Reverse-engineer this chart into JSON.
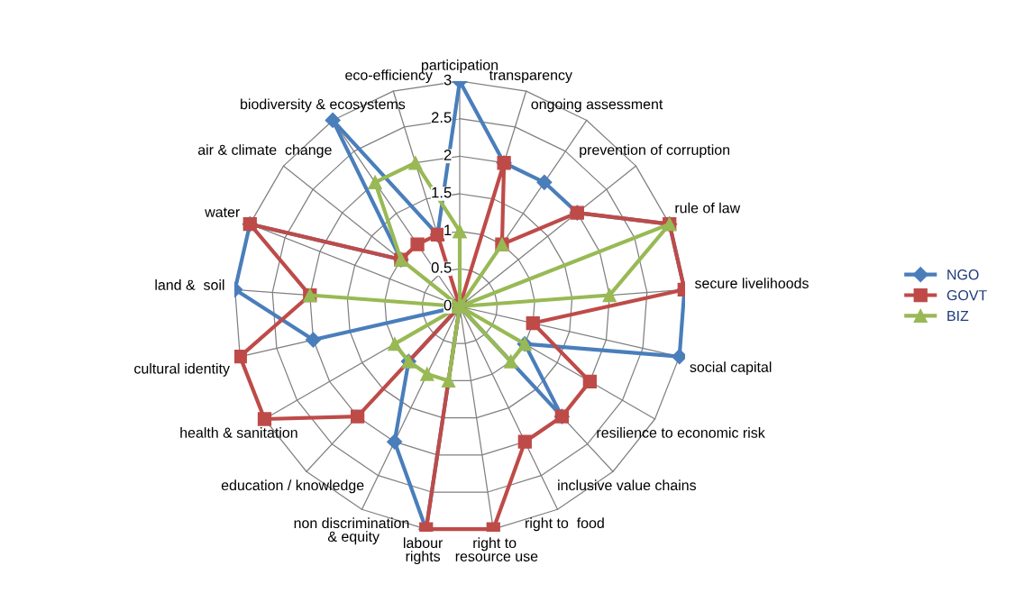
{
  "chart_data": {
    "type": "radar",
    "categories": [
      "participation",
      "transparency",
      "ongoing assessment",
      "prevention of corruption",
      "rule of law",
      "secure livelihoods",
      "social capital",
      "resilience to economic risk",
      "inclusive value chains",
      "right to  food",
      "right to  resource use",
      "labour rights",
      "non discrimination  & equity",
      "education / knowledge",
      "health & sanitation",
      "cultural identity",
      "land &  soil",
      "water",
      "air & climate  change",
      "biodiversity & ecosystems",
      "eco-efficiency"
    ],
    "series": [
      {
        "name": "NGO",
        "color": "#4a7ebb",
        "marker": "diamond",
        "values": [
          3,
          2,
          2,
          2,
          3,
          3,
          3,
          1,
          2,
          0,
          0,
          3,
          2,
          1,
          0,
          2,
          3,
          3,
          1,
          3,
          1
        ]
      },
      {
        "name": "GOVT",
        "color": "#be4b48",
        "marker": "square",
        "values": [
          0,
          2,
          1,
          2,
          3,
          3,
          1,
          2,
          2,
          2,
          3,
          3,
          0,
          2,
          3,
          3,
          2,
          3,
          1,
          1,
          1
        ]
      },
      {
        "name": "BIZ",
        "color": "#98b954",
        "marker": "triangle",
        "values": [
          1,
          0,
          1,
          0,
          3,
          2,
          0,
          1,
          1,
          0,
          0,
          1,
          1,
          1,
          1,
          0,
          2,
          0,
          1,
          2,
          2
        ]
      }
    ],
    "ylim": [
      0,
      3
    ],
    "yticks": [
      0,
      0.5,
      1,
      1.5,
      2,
      2.5,
      3
    ],
    "grid": true,
    "legend": "right"
  }
}
